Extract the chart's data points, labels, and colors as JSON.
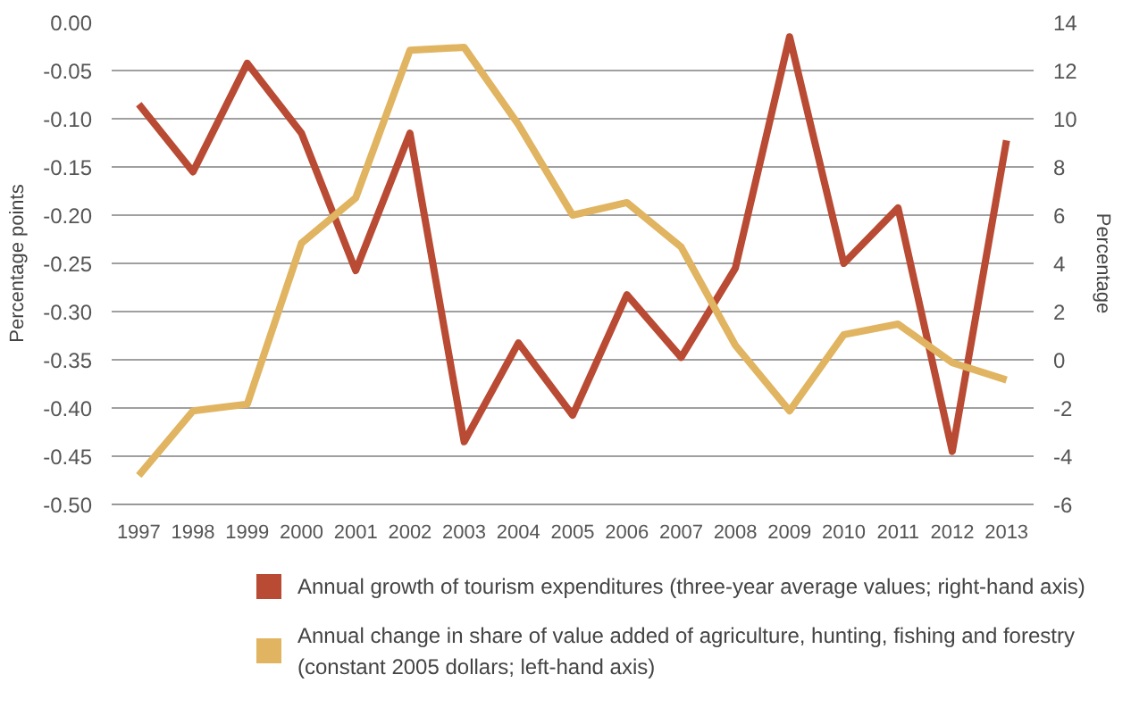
{
  "chart_data": {
    "type": "line",
    "categories": [
      "1997",
      "1998",
      "1999",
      "2000",
      "2001",
      "2002",
      "2003",
      "2004",
      "2005",
      "2006",
      "2007",
      "2008",
      "2009",
      "2010",
      "2011",
      "2012",
      "2013"
    ],
    "series": [
      {
        "name": "Annual growth of tourism expenditures (three-year average values; right-hand axis)",
        "color": "#b94a33",
        "axis": "y2",
        "values": [
          10.6,
          7.8,
          12.3,
          9.4,
          3.7,
          9.4,
          -3.4,
          0.7,
          -2.3,
          2.7,
          0.1,
          3.8,
          13.4,
          4.0,
          6.3,
          -3.8,
          9.1
        ]
      },
      {
        "name": "Annual change in share of value added of agriculture, hunting, fishing and forestry (constant 2005 dollars; left-hand axis)",
        "color": "#e0b460",
        "values": [
          -0.47,
          -0.403,
          -0.396,
          -0.229,
          -0.182,
          -0.029,
          -0.026,
          -0.106,
          -0.2,
          -0.187,
          -0.233,
          -0.335,
          -0.403,
          -0.324,
          -0.313,
          -0.353,
          -0.371
        ]
      }
    ],
    "ylabel": "Percentage points",
    "y2label": "Percentage",
    "ylim": [
      -0.5,
      0.0
    ],
    "yticks": [
      {
        "value": -0.5,
        "label": "-0.50"
      },
      {
        "value": -0.45,
        "label": "-0.45"
      },
      {
        "value": -0.4,
        "label": "-0.40"
      },
      {
        "value": -0.35,
        "label": "-0.35"
      },
      {
        "value": -0.3,
        "label": "-0.30"
      },
      {
        "value": -0.25,
        "label": "-0.25"
      },
      {
        "value": -0.2,
        "label": "-0.20"
      },
      {
        "value": -0.15,
        "label": "-0.15"
      },
      {
        "value": -0.1,
        "label": "-0.10"
      },
      {
        "value": -0.05,
        "label": "-0.05"
      },
      {
        "value": 0.0,
        "label": "0.00"
      }
    ],
    "y2lim": [
      -6,
      14
    ],
    "y2ticks": [
      -6,
      -4,
      -2,
      0,
      2,
      4,
      6,
      8,
      10,
      12,
      14
    ],
    "grid": "y",
    "legend": "bottom",
    "marker": "none",
    "line_style": "solid"
  }
}
